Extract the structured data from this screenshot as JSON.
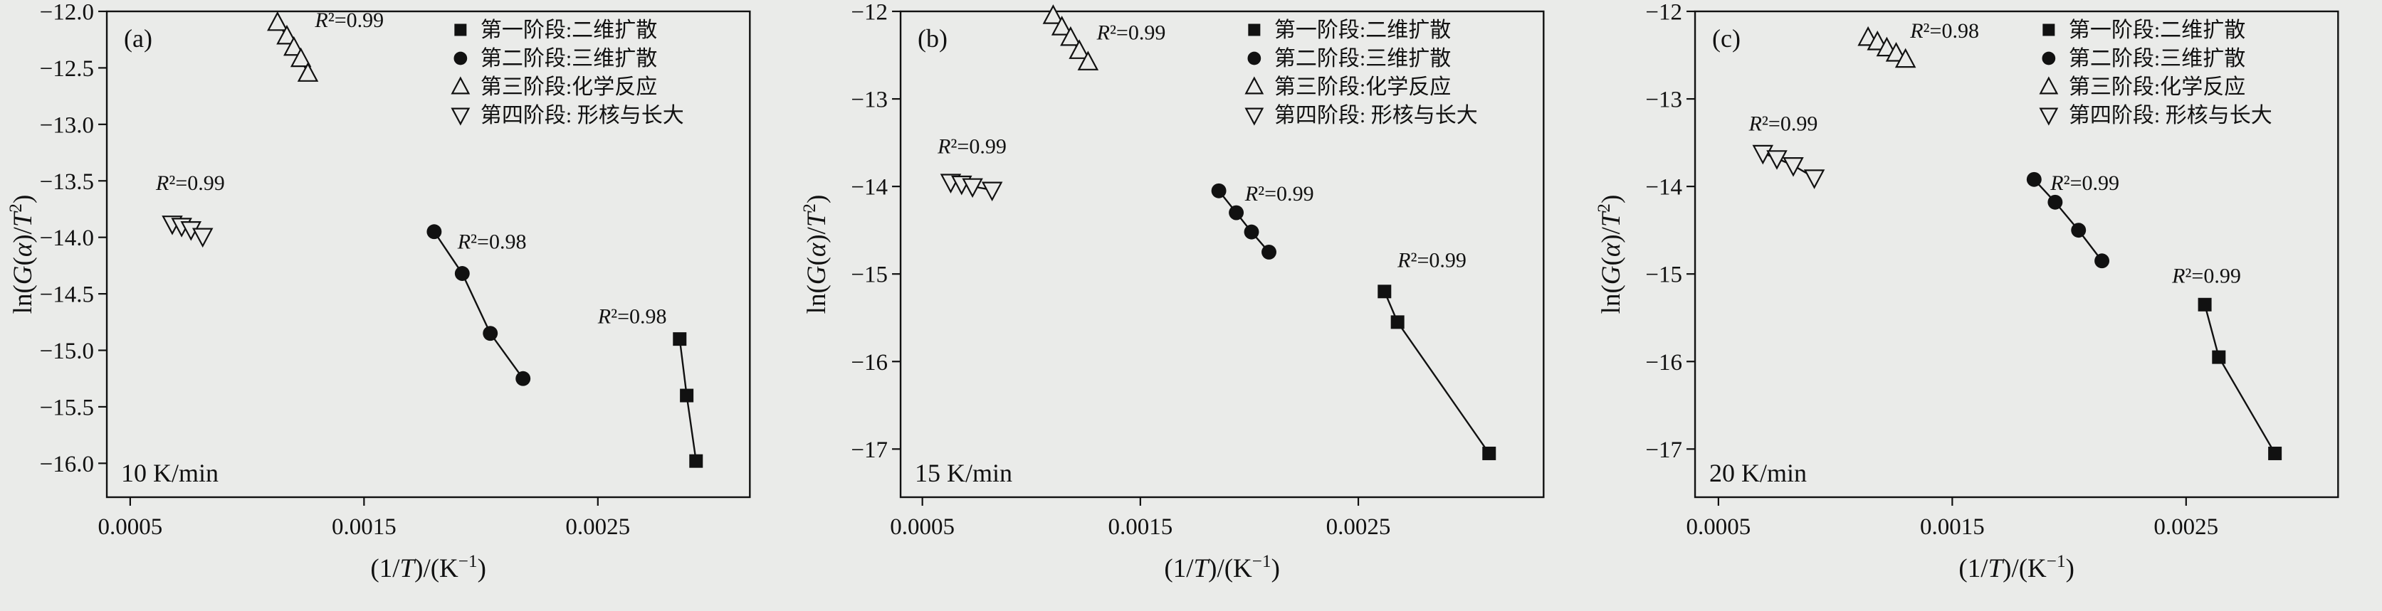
{
  "figure": {
    "background": "#eaebe9",
    "ink": "#111111"
  },
  "legend": {
    "entries": [
      {
        "label": "第一阶段:二维扩散",
        "marker": "square-filled"
      },
      {
        "label": "第二阶段:三维扩散",
        "marker": "circle-filled"
      },
      {
        "label": "第三阶段:化学反应",
        "marker": "triangle-up-open"
      },
      {
        "label": "第四阶段: 形核与长大",
        "marker": "triangle-down-open"
      }
    ]
  },
  "chart_data": [
    {
      "type": "scatter",
      "panel_label": "(a)",
      "rate_label": "10 K/min",
      "xlabel": "(1/T)/(K−1)",
      "ylabel": "ln(G(α)/T2)",
      "xlabel_segments": [
        {
          "t": "(1/",
          "s": "n"
        },
        {
          "t": "T",
          "s": "i"
        },
        {
          "t": ")/(K",
          "s": "n"
        },
        {
          "t": "−1",
          "s": "s"
        },
        {
          "t": ")",
          "s": "n"
        }
      ],
      "ylabel_segments": [
        {
          "t": "ln(",
          "s": "n"
        },
        {
          "t": "G",
          "s": "i"
        },
        {
          "t": "(",
          "s": "n"
        },
        {
          "t": "α",
          "s": "i"
        },
        {
          "t": ")/",
          "s": "n"
        },
        {
          "t": "T",
          "s": "i"
        },
        {
          "t": "2",
          "s": "s"
        },
        {
          "t": ")",
          "s": "n"
        }
      ],
      "xlim": [
        0.0004,
        0.00315
      ],
      "ylim": [
        -16.3,
        -12.0
      ],
      "xticks": [
        {
          "v": 0.0005,
          "label": "0.0005"
        },
        {
          "v": 0.0015,
          "label": "0.0015"
        },
        {
          "v": 0.0025,
          "label": "0.0025"
        }
      ],
      "yticks": [
        {
          "v": -12.0,
          "label": "−12.0"
        },
        {
          "v": -12.5,
          "label": "−12.5"
        },
        {
          "v": -13.0,
          "label": "−13.0"
        },
        {
          "v": -13.5,
          "label": "−13.5"
        },
        {
          "v": -14.0,
          "label": "−14.0"
        },
        {
          "v": -14.5,
          "label": "−14.5"
        },
        {
          "v": -15.0,
          "label": "−15.0"
        },
        {
          "v": -15.5,
          "label": "−15.5"
        },
        {
          "v": -16.0,
          "label": "−16.0"
        }
      ],
      "series": [
        {
          "name": "第一阶段:二维扩散",
          "marker": "square-filled",
          "x": [
            0.00285,
            0.00288,
            0.00292
          ],
          "y": [
            -14.9,
            -15.4,
            -15.98
          ],
          "r2": {
            "value": "0.98",
            "x": 0.0025,
            "y": -14.76
          }
        },
        {
          "name": "第二阶段:三维扩散",
          "marker": "circle-filled",
          "x": [
            0.0018,
            0.00192,
            0.00204,
            0.00218
          ],
          "y": [
            -13.95,
            -14.32,
            -14.85,
            -15.25
          ],
          "r2": {
            "value": "0.98",
            "x": 0.0019,
            "y": -14.1
          }
        },
        {
          "name": "第三阶段:化学反应",
          "marker": "triangle-up-open",
          "x": [
            0.00113,
            0.00117,
            0.0012,
            0.00123,
            0.00126
          ],
          "y": [
            -12.1,
            -12.22,
            -12.32,
            -12.42,
            -12.55
          ],
          "r2": {
            "value": "0.99",
            "x": 0.00129,
            "y": -12.14
          }
        },
        {
          "name": "第四阶段: 形核与长大",
          "marker": "triangle-down-open",
          "x": [
            0.00068,
            0.00072,
            0.00076,
            0.00081
          ],
          "y": [
            -13.88,
            -13.9,
            -13.93,
            -13.99
          ],
          "r2": {
            "value": "0.99",
            "x": 0.00061,
            "y": -13.58
          }
        }
      ]
    },
    {
      "type": "scatter",
      "panel_label": "(b)",
      "rate_label": "15 K/min",
      "xlabel": "(1/T)/(K−1)",
      "ylabel": "ln(G(α)/T2)",
      "xlabel_segments": [
        {
          "t": "(1/",
          "s": "n"
        },
        {
          "t": "T",
          "s": "i"
        },
        {
          "t": ")/(K",
          "s": "n"
        },
        {
          "t": "−1",
          "s": "s"
        },
        {
          "t": ")",
          "s": "n"
        }
      ],
      "ylabel_segments": [
        {
          "t": "ln(",
          "s": "n"
        },
        {
          "t": "G",
          "s": "i"
        },
        {
          "t": "(",
          "s": "n"
        },
        {
          "t": "α",
          "s": "i"
        },
        {
          "t": ")/",
          "s": "n"
        },
        {
          "t": "T",
          "s": "i"
        },
        {
          "t": "2",
          "s": "s"
        },
        {
          "t": ")",
          "s": "n"
        }
      ],
      "xlim": [
        0.0004,
        0.00335
      ],
      "ylim": [
        -17.55,
        -12.0
      ],
      "xticks": [
        {
          "v": 0.0005,
          "label": "0.0005"
        },
        {
          "v": 0.0015,
          "label": "0.0015"
        },
        {
          "v": 0.0025,
          "label": "0.0025"
        }
      ],
      "yticks": [
        {
          "v": -12,
          "label": "−12"
        },
        {
          "v": -13,
          "label": "−13"
        },
        {
          "v": -14,
          "label": "−14"
        },
        {
          "v": -15,
          "label": "−15"
        },
        {
          "v": -16,
          "label": "−16"
        },
        {
          "v": -17,
          "label": "−17"
        }
      ],
      "series": [
        {
          "name": "第一阶段:二维扩散",
          "marker": "square-filled",
          "x": [
            0.00262,
            0.00268,
            0.0031
          ],
          "y": [
            -15.2,
            -15.55,
            -17.05
          ],
          "r2": {
            "value": "0.99",
            "x": 0.00268,
            "y": -14.92
          }
        },
        {
          "name": "第二阶段:三维扩散",
          "marker": "circle-filled",
          "x": [
            0.00186,
            0.00194,
            0.00201,
            0.00209
          ],
          "y": [
            -14.05,
            -14.3,
            -14.52,
            -14.75
          ],
          "r2": {
            "value": "0.99",
            "x": 0.00198,
            "y": -14.16
          }
        },
        {
          "name": "第三阶段:化学反应",
          "marker": "triangle-up-open",
          "x": [
            0.0011,
            0.00114,
            0.00118,
            0.00122,
            0.00126
          ],
          "y": [
            -12.05,
            -12.18,
            -12.3,
            -12.45,
            -12.58
          ],
          "r2": {
            "value": "0.99",
            "x": 0.0013,
            "y": -12.32
          }
        },
        {
          "name": "第四阶段: 形核与长大",
          "marker": "triangle-down-open",
          "x": [
            0.00063,
            0.00068,
            0.00073,
            0.00082
          ],
          "y": [
            -13.95,
            -13.97,
            -14.0,
            -14.04
          ],
          "r2": {
            "value": "0.99",
            "x": 0.00057,
            "y": -13.62
          }
        }
      ]
    },
    {
      "type": "scatter",
      "panel_label": "(c)",
      "rate_label": "20 K/min",
      "xlabel": "(1/T)/(K−1)",
      "ylabel": "ln(G(α)/T2)",
      "xlabel_segments": [
        {
          "t": "(1/",
          "s": "n"
        },
        {
          "t": "T",
          "s": "i"
        },
        {
          "t": ")/(K",
          "s": "n"
        },
        {
          "t": "−1",
          "s": "s"
        },
        {
          "t": ")",
          "s": "n"
        }
      ],
      "ylabel_segments": [
        {
          "t": "ln(",
          "s": "n"
        },
        {
          "t": "G",
          "s": "i"
        },
        {
          "t": "(",
          "s": "n"
        },
        {
          "t": "α",
          "s": "i"
        },
        {
          "t": ")/",
          "s": "n"
        },
        {
          "t": "T",
          "s": "i"
        },
        {
          "t": "2",
          "s": "s"
        },
        {
          "t": ")",
          "s": "n"
        }
      ],
      "xlim": [
        0.0004,
        0.00315
      ],
      "ylim": [
        -17.55,
        -12.0
      ],
      "xticks": [
        {
          "v": 0.0005,
          "label": "0.0005"
        },
        {
          "v": 0.0015,
          "label": "0.0015"
        },
        {
          "v": 0.0025,
          "label": "0.0025"
        }
      ],
      "yticks": [
        {
          "v": -12,
          "label": "−12"
        },
        {
          "v": -13,
          "label": "−13"
        },
        {
          "v": -14,
          "label": "−14"
        },
        {
          "v": -15,
          "label": "−15"
        },
        {
          "v": -16,
          "label": "−16"
        },
        {
          "v": -17,
          "label": "−17"
        }
      ],
      "series": [
        {
          "name": "第一阶段:二维扩散",
          "marker": "square-filled",
          "x": [
            0.00258,
            0.00264,
            0.00288
          ],
          "y": [
            -15.35,
            -15.95,
            -17.05
          ],
          "r2": {
            "value": "0.99",
            "x": 0.00244,
            "y": -15.1
          }
        },
        {
          "name": "第二阶段:三维扩散",
          "marker": "circle-filled",
          "x": [
            0.00185,
            0.00194,
            0.00204,
            0.00214
          ],
          "y": [
            -13.92,
            -14.18,
            -14.5,
            -14.85
          ],
          "r2": {
            "value": "0.99",
            "x": 0.00192,
            "y": -14.04
          }
        },
        {
          "name": "第三阶段:化学反应",
          "marker": "triangle-up-open",
          "x": [
            0.00114,
            0.00118,
            0.00122,
            0.00126,
            0.0013
          ],
          "y": [
            -12.3,
            -12.35,
            -12.42,
            -12.48,
            -12.55
          ],
          "r2": {
            "value": "0.98",
            "x": 0.00132,
            "y": -12.3
          }
        },
        {
          "name": "第四阶段: 形核与长大",
          "marker": "triangle-down-open",
          "x": [
            0.00069,
            0.00075,
            0.00082,
            0.00091
          ],
          "y": [
            -13.62,
            -13.68,
            -13.76,
            -13.9
          ],
          "r2": {
            "value": "0.99",
            "x": 0.00063,
            "y": -13.36
          }
        }
      ]
    }
  ]
}
